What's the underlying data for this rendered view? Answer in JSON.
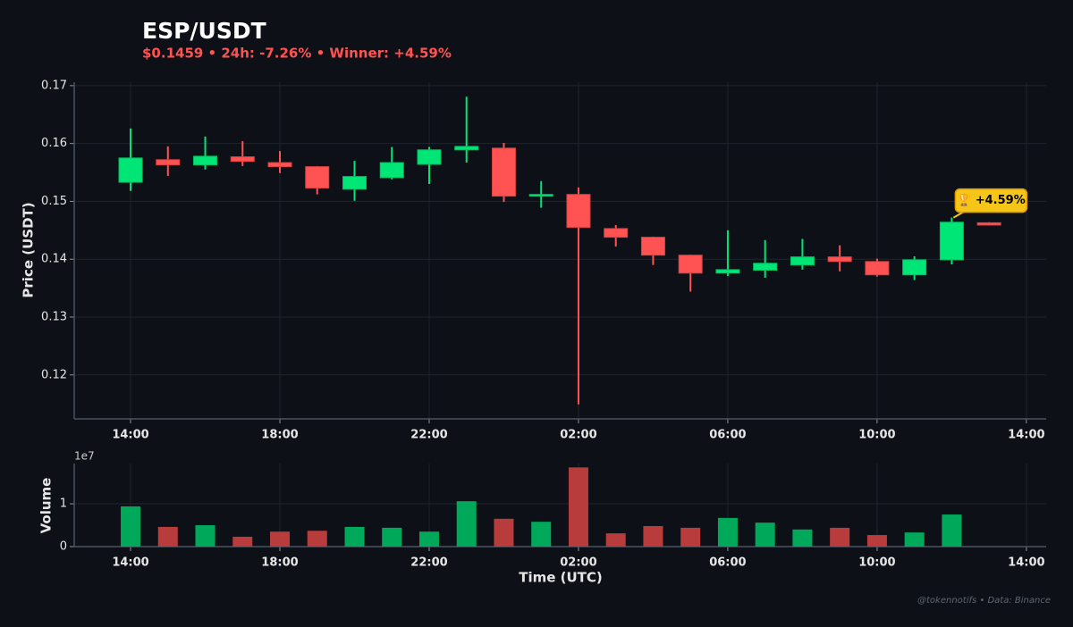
{
  "chart_data": [
    {
      "type": "candlestick",
      "title": "ESP/USDT",
      "subtitle": "$0.1459  •  24h: -7.26%  •  Winner: +4.59%",
      "y_label": "Price (USDT)",
      "annotation": "🏆 +4.59%",
      "footer": "@tokennotifs  •  Data: Binance",
      "up_color": "#00e676",
      "down_color": "#ff5252",
      "x": [
        0,
        1,
        2,
        3,
        4,
        5,
        6,
        7,
        8,
        9,
        10,
        11,
        12,
        13,
        14,
        15,
        16,
        17,
        18,
        19,
        20,
        21,
        22,
        23
      ],
      "open": [
        0.1533,
        0.1572,
        0.1563,
        0.1577,
        0.1567,
        0.156,
        0.1521,
        0.1541,
        0.1564,
        0.1589,
        0.1592,
        0.1509,
        0.1512,
        0.1453,
        0.1438,
        0.1407,
        0.1376,
        0.1381,
        0.139,
        0.1404,
        0.1396,
        0.1373,
        0.1399,
        0.1463
      ],
      "high": [
        0.1626,
        0.1595,
        0.1612,
        0.1604,
        0.1587,
        0.1561,
        0.157,
        0.1594,
        0.1594,
        0.1681,
        0.1601,
        0.1535,
        0.1524,
        0.1459,
        0.1439,
        0.1408,
        0.145,
        0.1433,
        0.1435,
        0.1424,
        0.1401,
        0.1405,
        0.1472,
        0.1464
      ],
      "low": [
        0.1518,
        0.1544,
        0.1555,
        0.1561,
        0.1549,
        0.1512,
        0.1501,
        0.1538,
        0.153,
        0.1567,
        0.1499,
        0.1489,
        0.1149,
        0.1422,
        0.139,
        0.1344,
        0.1371,
        0.1368,
        0.1382,
        0.1379,
        0.137,
        0.1364,
        0.1391,
        0.1459
      ],
      "close": [
        0.1575,
        0.1563,
        0.1578,
        0.1569,
        0.156,
        0.1523,
        0.1543,
        0.1567,
        0.1589,
        0.1595,
        0.1509,
        0.1512,
        0.1455,
        0.1438,
        0.1407,
        0.1376,
        0.1382,
        0.1393,
        0.1404,
        0.1396,
        0.1373,
        0.1399,
        0.1464,
        0.1459
      ],
      "xlim": [
        -1.51,
        24.53
      ],
      "xticks": [
        {
          "value": 0,
          "label": "14:00"
        },
        {
          "value": 4,
          "label": "18:00"
        },
        {
          "value": 8,
          "label": "22:00"
        },
        {
          "value": 12,
          "label": "02:00"
        },
        {
          "value": 16,
          "label": "06:00"
        },
        {
          "value": 20,
          "label": "10:00"
        },
        {
          "value": 24,
          "label": "14:00"
        }
      ],
      "ylim": [
        0.1124,
        0.1706
      ],
      "yticks": [
        0.12,
        0.13,
        0.14,
        0.15,
        0.16,
        0.17
      ],
      "grid": true
    },
    {
      "type": "bar",
      "y_label": "Volume",
      "x_label": "Time (UTC)",
      "offset_label": "1e7",
      "up_color": "#00a85a",
      "down_color": "#b83c3c",
      "x": [
        0,
        1,
        2,
        3,
        4,
        5,
        6,
        7,
        8,
        9,
        10,
        11,
        12,
        13,
        14,
        15,
        16,
        17,
        18,
        19,
        20,
        21,
        22,
        23
      ],
      "values": [
        9400000,
        4600000,
        5000000,
        2300000,
        3500000,
        3700000,
        4600000,
        4400000,
        3500000,
        10600000,
        6500000,
        5800000,
        18500000,
        3100000,
        4800000,
        4400000,
        6700000,
        5600000,
        4000000,
        4400000,
        2700000,
        3300000,
        7500000,
        null
      ],
      "xlim": [
        -1.51,
        24.53
      ],
      "xticks": [
        {
          "value": 0,
          "label": "14:00"
        },
        {
          "value": 4,
          "label": "18:00"
        },
        {
          "value": 8,
          "label": "22:00"
        },
        {
          "value": 12,
          "label": "02:00"
        },
        {
          "value": 16,
          "label": "06:00"
        },
        {
          "value": 20,
          "label": "10:00"
        },
        {
          "value": 24,
          "label": "14:00"
        }
      ],
      "ylim": [
        0,
        19400000
      ],
      "yticks": [
        0,
        {
          "value": 10000000,
          "label": "1"
        }
      ],
      "grid": true
    }
  ]
}
